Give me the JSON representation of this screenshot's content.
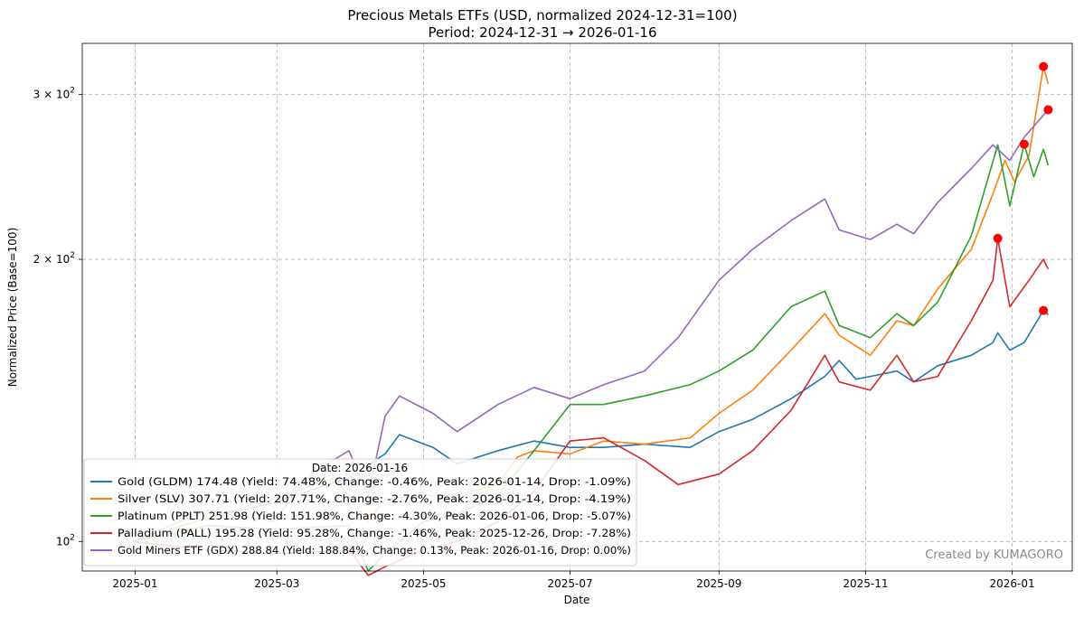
{
  "chart_data": {
    "type": "line",
    "title": "Precious Metals ETFs (USD, normalized 2024-12-31=100)",
    "subtitle": "Period: 2024-12-31 → 2026-01-16",
    "xlabel": "Date",
    "ylabel": "Normalized Price (Base=100)",
    "yscale": "log",
    "ylim": [
      93,
      340
    ],
    "xlim": [
      "2024-12-10",
      "2026-01-26"
    ],
    "x_ticks": [
      {
        "date": "2025-01-01",
        "label": "2025-01"
      },
      {
        "date": "2025-03-01",
        "label": "2025-03"
      },
      {
        "date": "2025-05-01",
        "label": "2025-05"
      },
      {
        "date": "2025-07-01",
        "label": "2025-07"
      },
      {
        "date": "2025-09-01",
        "label": "2025-09"
      },
      {
        "date": "2025-11-01",
        "label": "2025-11"
      },
      {
        "date": "2026-01-01",
        "label": "2026-01"
      }
    ],
    "y_ticks": [
      {
        "value": 100,
        "base": "10",
        "exp": "2",
        "mult": ""
      },
      {
        "value": 200,
        "base": "10",
        "exp": "2",
        "mult": "2 × "
      },
      {
        "value": 300,
        "base": "10",
        "exp": "2",
        "mult": "3 × "
      }
    ],
    "grid": true,
    "legend_title": "Date: 2026-01-16",
    "legend_placement": "lower-left",
    "watermark": "Created by KUMAGORO",
    "series": [
      {
        "name": "Gold (GLDM)",
        "ticker": "GLDM",
        "color": "#1f77b4",
        "legend": "Gold (GLDM) 174.48 (Yield: 74.48%, Change: -0.46%, Peak: 2026-01-14, Drop: -1.09%)",
        "peak": {
          "date": "2026-01-14",
          "value": 176.4
        },
        "points": [
          [
            "2024-12-31",
            100
          ],
          [
            "2025-01-31",
            106
          ],
          [
            "2025-02-28",
            110
          ],
          [
            "2025-03-31",
            117
          ],
          [
            "2025-04-15",
            124
          ],
          [
            "2025-04-21",
            130
          ],
          [
            "2025-05-05",
            126
          ],
          [
            "2025-05-15",
            121
          ],
          [
            "2025-06-01",
            125
          ],
          [
            "2025-06-16",
            128
          ],
          [
            "2025-07-01",
            126
          ],
          [
            "2025-07-15",
            126
          ],
          [
            "2025-08-01",
            127
          ],
          [
            "2025-08-20",
            126
          ],
          [
            "2025-09-01",
            131
          ],
          [
            "2025-09-15",
            135
          ],
          [
            "2025-10-01",
            142
          ],
          [
            "2025-10-15",
            150
          ],
          [
            "2025-10-21",
            156
          ],
          [
            "2025-10-28",
            149
          ],
          [
            "2025-11-03",
            150
          ],
          [
            "2025-11-14",
            152
          ],
          [
            "2025-11-21",
            148
          ],
          [
            "2025-12-01",
            154
          ],
          [
            "2025-12-15",
            158
          ],
          [
            "2025-12-24",
            163
          ],
          [
            "2025-12-26",
            167
          ],
          [
            "2025-12-31",
            160
          ],
          [
            "2026-01-06",
            163
          ],
          [
            "2026-01-14",
            176.4
          ],
          [
            "2026-01-16",
            174.48
          ]
        ]
      },
      {
        "name": "Silver (SLV)",
        "ticker": "SLV",
        "color": "#ff7f0e",
        "legend": "Silver (SLV) 307.71 (Yield: 207.71%, Change: -2.76%, Peak: 2026-01-14, Drop: -4.19%)",
        "peak": {
          "date": "2026-01-14",
          "value": 321.2
        },
        "points": [
          [
            "2024-12-31",
            100
          ],
          [
            "2025-01-31",
            106
          ],
          [
            "2025-02-28",
            111
          ],
          [
            "2025-03-25",
            117
          ],
          [
            "2025-04-08",
            105
          ],
          [
            "2025-04-15",
            111
          ],
          [
            "2025-05-01",
            112
          ],
          [
            "2025-05-15",
            112
          ],
          [
            "2025-06-01",
            115
          ],
          [
            "2025-06-09",
            123
          ],
          [
            "2025-06-16",
            125
          ],
          [
            "2025-07-01",
            124
          ],
          [
            "2025-07-15",
            128
          ],
          [
            "2025-08-01",
            127
          ],
          [
            "2025-08-20",
            129
          ],
          [
            "2025-09-01",
            137
          ],
          [
            "2025-09-15",
            145
          ],
          [
            "2025-10-01",
            160
          ],
          [
            "2025-10-15",
            175
          ],
          [
            "2025-10-21",
            166
          ],
          [
            "2025-11-03",
            158
          ],
          [
            "2025-11-14",
            172
          ],
          [
            "2025-11-21",
            170
          ],
          [
            "2025-12-01",
            186
          ],
          [
            "2025-12-15",
            205
          ],
          [
            "2025-12-24",
            235
          ],
          [
            "2025-12-29",
            255
          ],
          [
            "2026-01-02",
            242
          ],
          [
            "2026-01-08",
            258
          ],
          [
            "2026-01-14",
            321.2
          ],
          [
            "2026-01-16",
            307.71
          ]
        ]
      },
      {
        "name": "Platinum (PPLT)",
        "ticker": "PPLT",
        "color": "#2ca02c",
        "legend": "Platinum (PPLT) 251.98 (Yield: 151.98%, Change: -4.30%, Peak: 2026-01-06, Drop: -5.07%)",
        "peak": {
          "date": "2026-01-06",
          "value": 265.4
        },
        "points": [
          [
            "2024-12-31",
            100
          ],
          [
            "2025-01-31",
            104
          ],
          [
            "2025-02-28",
            103
          ],
          [
            "2025-03-31",
            104
          ],
          [
            "2025-04-08",
            93
          ],
          [
            "2025-04-15",
            97
          ],
          [
            "2025-05-01",
            105
          ],
          [
            "2025-05-15",
            107
          ],
          [
            "2025-06-01",
            112
          ],
          [
            "2025-06-16",
            125
          ],
          [
            "2025-07-01",
            140
          ],
          [
            "2025-07-15",
            140
          ],
          [
            "2025-08-01",
            143
          ],
          [
            "2025-08-20",
            147
          ],
          [
            "2025-09-01",
            152
          ],
          [
            "2025-09-15",
            160
          ],
          [
            "2025-10-01",
            178
          ],
          [
            "2025-10-15",
            185
          ],
          [
            "2025-10-21",
            170
          ],
          [
            "2025-11-03",
            165
          ],
          [
            "2025-11-14",
            175
          ],
          [
            "2025-11-21",
            170
          ],
          [
            "2025-12-01",
            180
          ],
          [
            "2025-12-15",
            212
          ],
          [
            "2025-12-26",
            265
          ],
          [
            "2025-12-31",
            228
          ],
          [
            "2026-01-06",
            265.4
          ],
          [
            "2026-01-10",
            245
          ],
          [
            "2026-01-14",
            262
          ],
          [
            "2026-01-16",
            251.98
          ]
        ]
      },
      {
        "name": "Palladium (PALL)",
        "ticker": "PALL",
        "color": "#d62728",
        "legend": "Palladium (PALL) 195.28 (Yield: 95.28%, Change: -1.46%, Peak: 2025-12-26, Drop: -7.28%)",
        "peak": {
          "date": "2025-12-26",
          "value": 210.6
        },
        "points": [
          [
            "2024-12-31",
            100
          ],
          [
            "2025-01-31",
            98
          ],
          [
            "2025-02-28",
            97
          ],
          [
            "2025-03-31",
            98
          ],
          [
            "2025-04-08",
            92
          ],
          [
            "2025-04-15",
            94
          ],
          [
            "2025-05-01",
            98
          ],
          [
            "2025-05-15",
            100
          ],
          [
            "2025-06-01",
            105
          ],
          [
            "2025-06-16",
            113
          ],
          [
            "2025-07-01",
            128
          ],
          [
            "2025-07-15",
            129
          ],
          [
            "2025-08-01",
            122
          ],
          [
            "2025-08-15",
            115
          ],
          [
            "2025-09-01",
            118
          ],
          [
            "2025-09-15",
            125
          ],
          [
            "2025-10-01",
            138
          ],
          [
            "2025-10-15",
            158
          ],
          [
            "2025-10-21",
            148
          ],
          [
            "2025-11-03",
            145
          ],
          [
            "2025-11-14",
            158
          ],
          [
            "2025-11-21",
            148
          ],
          [
            "2025-12-01",
            150
          ],
          [
            "2025-12-15",
            172
          ],
          [
            "2025-12-24",
            190
          ],
          [
            "2025-12-26",
            210.6
          ],
          [
            "2025-12-31",
            178
          ],
          [
            "2026-01-08",
            190
          ],
          [
            "2026-01-14",
            200
          ],
          [
            "2026-01-16",
            195.28
          ]
        ]
      },
      {
        "name": "Gold Miners ETF (GDX)",
        "ticker": "GDX",
        "color": "#9467bd",
        "legend": "Gold Miners ETF (GDX) 288.84 (Yield: 188.84%, Change: 0.13%, Peak: 2026-01-16, Drop: 0.00%)",
        "peak": {
          "date": "2026-01-16",
          "value": 288.84
        },
        "points": [
          [
            "2024-12-31",
            100
          ],
          [
            "2025-01-31",
            108
          ],
          [
            "2025-02-28",
            105
          ],
          [
            "2025-03-15",
            118
          ],
          [
            "2025-03-31",
            125
          ],
          [
            "2025-04-08",
            112
          ],
          [
            "2025-04-15",
            136
          ],
          [
            "2025-04-21",
            143
          ],
          [
            "2025-05-05",
            137
          ],
          [
            "2025-05-15",
            131
          ],
          [
            "2025-06-01",
            140
          ],
          [
            "2025-06-16",
            146
          ],
          [
            "2025-07-01",
            142
          ],
          [
            "2025-07-15",
            147
          ],
          [
            "2025-08-01",
            152
          ],
          [
            "2025-08-15",
            165
          ],
          [
            "2025-09-01",
            190
          ],
          [
            "2025-09-15",
            205
          ],
          [
            "2025-10-01",
            220
          ],
          [
            "2025-10-15",
            232
          ],
          [
            "2025-10-21",
            215
          ],
          [
            "2025-11-03",
            210
          ],
          [
            "2025-11-14",
            218
          ],
          [
            "2025-11-21",
            213
          ],
          [
            "2025-12-01",
            230
          ],
          [
            "2025-12-15",
            250
          ],
          [
            "2025-12-24",
            265
          ],
          [
            "2025-12-31",
            255
          ],
          [
            "2026-01-06",
            270
          ],
          [
            "2026-01-16",
            288.84
          ]
        ]
      }
    ]
  }
}
